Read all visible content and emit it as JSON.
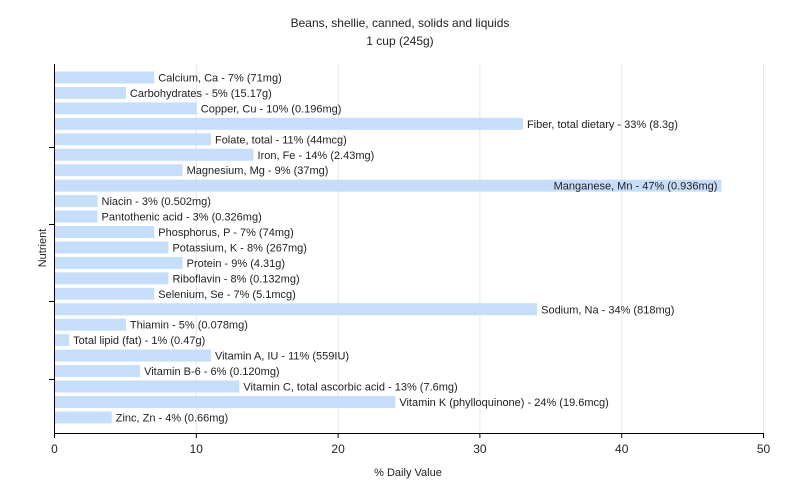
{
  "chart_data": {
    "type": "bar",
    "orientation": "horizontal",
    "title": "Beans, shellie, canned, solids and liquids",
    "subtitle": "1 cup (245g)",
    "xlabel": "% Daily Value",
    "ylabel": "Nutrient",
    "xlim": [
      0,
      50
    ],
    "xticks": [
      0,
      10,
      20,
      30,
      40,
      50
    ],
    "grid": true,
    "bar_color": "#c6defa",
    "categories": [
      "Calcium, Ca",
      "Carbohydrates",
      "Copper, Cu",
      "Fiber, total dietary",
      "Folate, total",
      "Iron, Fe",
      "Magnesium, Mg",
      "Manganese, Mn",
      "Niacin",
      "Pantothenic acid",
      "Phosphorus, P",
      "Potassium, K",
      "Protein",
      "Riboflavin",
      "Selenium, Se",
      "Sodium, Na",
      "Thiamin",
      "Total lipid (fat)",
      "Vitamin A, IU",
      "Vitamin B-6",
      "Vitamin C, total ascorbic acid",
      "Vitamin K (phylloquinone)",
      "Zinc, Zn"
    ],
    "values": [
      7,
      5,
      10,
      33,
      11,
      14,
      9,
      47,
      3,
      3,
      7,
      8,
      9,
      8,
      7,
      34,
      5,
      1,
      11,
      6,
      13,
      24,
      4
    ],
    "labels": [
      "Calcium, Ca - 7% (71mg)",
      "Carbohydrates - 5% (15.17g)",
      "Copper, Cu - 10% (0.196mg)",
      "Fiber, total dietary - 33% (8.3g)",
      "Folate, total - 11% (44mcg)",
      "Iron, Fe - 14% (2.43mg)",
      "Magnesium, Mg - 9% (37mg)",
      "Manganese, Mn - 47% (0.936mg)",
      "Niacin - 3% (0.502mg)",
      "Pantothenic acid - 3% (0.326mg)",
      "Phosphorus, P - 7% (74mg)",
      "Potassium, K - 8% (267mg)",
      "Protein - 9% (4.31g)",
      "Riboflavin - 8% (0.132mg)",
      "Selenium, Se - 7% (5.1mcg)",
      "Sodium, Na - 34% (818mg)",
      "Thiamin - 5% (0.078mg)",
      "Total lipid (fat) - 1% (0.47g)",
      "Vitamin A, IU - 11% (559IU)",
      "Vitamin B-6 - 6% (0.120mg)",
      "Vitamin C, total ascorbic acid - 13% (7.6mg)",
      "Vitamin K (phylloquinone) - 24% (19.6mcg)",
      "Zinc, Zn - 4% (0.66mg)"
    ]
  }
}
